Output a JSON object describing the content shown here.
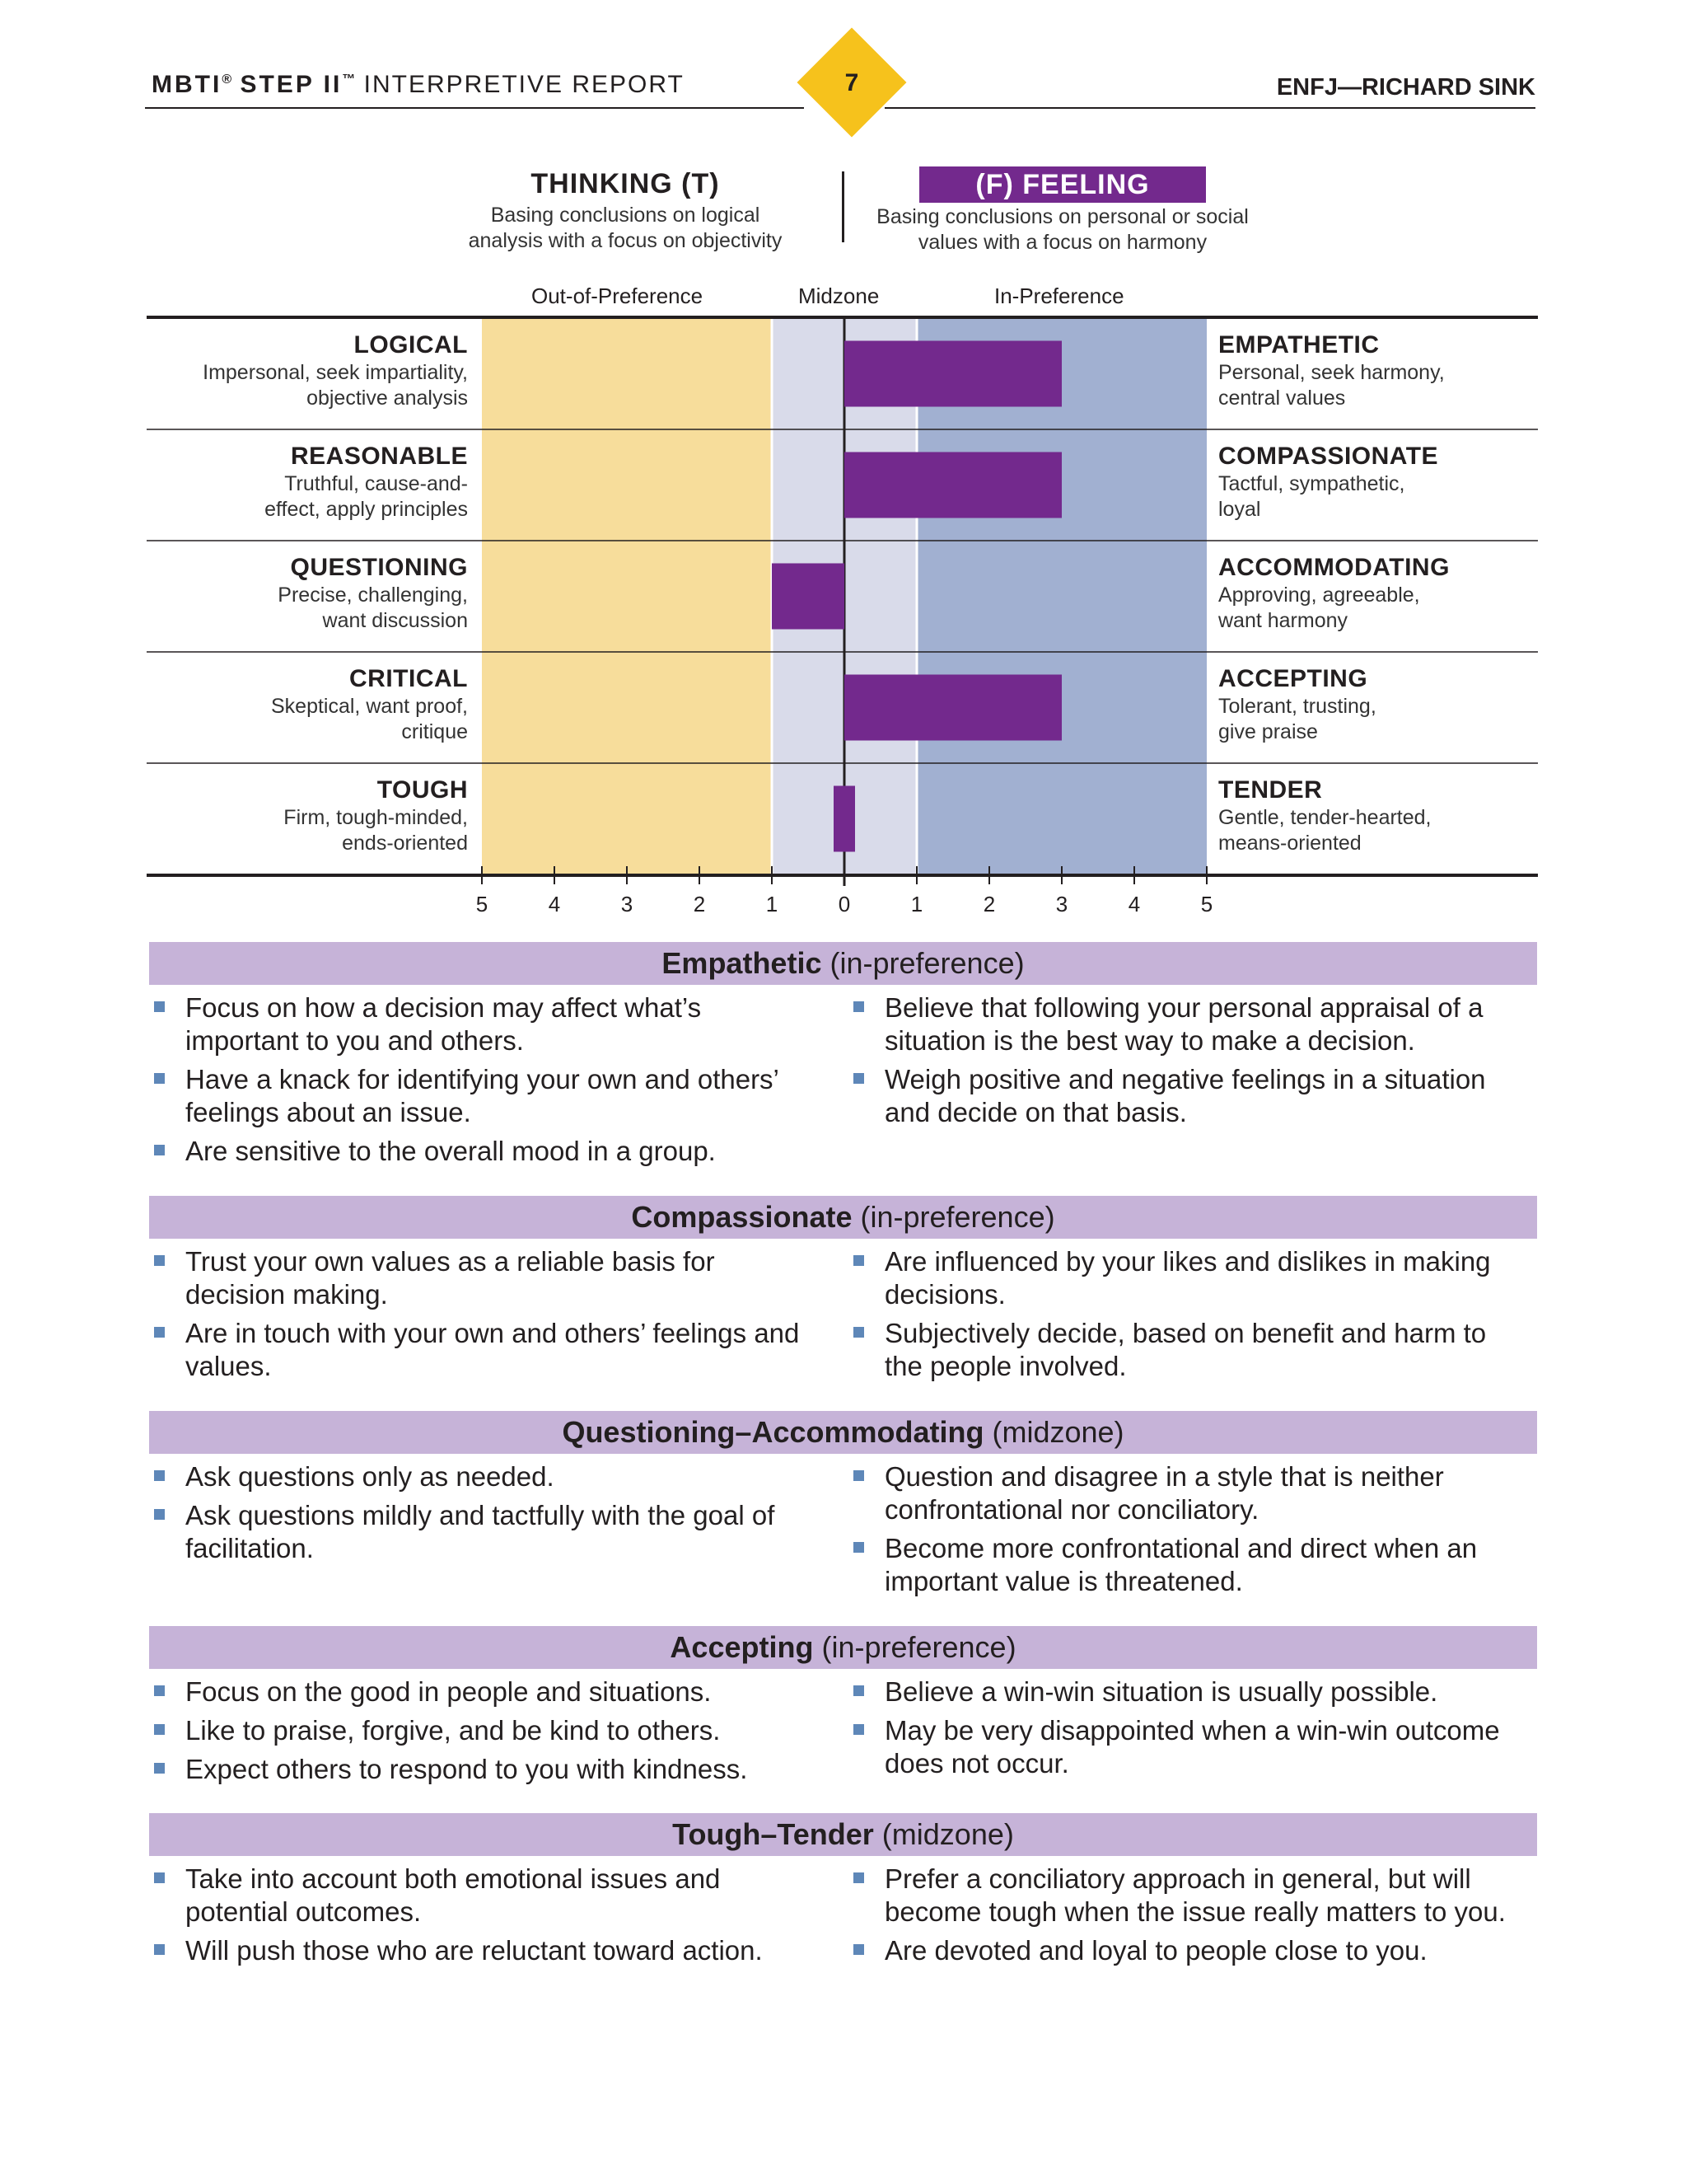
{
  "header": {
    "brand": "MBTI",
    "brand_mark": "®",
    "step": "STEP II",
    "step_mark": "™",
    "report": "INTERPRETIVE REPORT",
    "page_number": "7",
    "person": "ENFJ—RICHARD SINK",
    "accent": "#f6c21c"
  },
  "dichotomy": {
    "left_title": "THINKING (T)",
    "left_desc_1": "Basing conclusions on logical",
    "left_desc_2": "analysis with a focus on objectivity",
    "right_title": "(F) FEELING",
    "right_desc_1": "Basing conclusions on personal or social",
    "right_desc_2": "values with a focus on harmony",
    "preferred": "F",
    "preferred_color": "#73298d"
  },
  "zones": {
    "out": "Out-of-Preference",
    "mid": "Midzone",
    "in": "In-Preference",
    "colors": {
      "out": "#f7dd9b",
      "mid": "#d9dbea",
      "in": "#a1b0d1"
    }
  },
  "chart_data": {
    "type": "bar",
    "orientation": "horizontal-diverging",
    "scale_left": [
      "5",
      "4",
      "3",
      "2",
      "1",
      "0"
    ],
    "scale_right": [
      "1",
      "2",
      "3",
      "4",
      "5"
    ],
    "xlim": [
      -5,
      5
    ],
    "bar_color": "#73298d",
    "facets": [
      {
        "left_pole": "LOGICAL",
        "left_desc_1": "Impersonal, seek impartiality,",
        "left_desc_2": "objective analysis",
        "right_pole": "EMPATHETIC",
        "right_desc_1": "Personal, seek harmony,",
        "right_desc_2": "central values",
        "value": 3
      },
      {
        "left_pole": "REASONABLE",
        "left_desc_1": "Truthful, cause-and-",
        "left_desc_2": "effect, apply principles",
        "right_pole": "COMPASSIONATE",
        "right_desc_1": "Tactful, sympathetic,",
        "right_desc_2": "loyal",
        "value": 3
      },
      {
        "left_pole": "QUESTIONING",
        "left_desc_1": "Precise, challenging,",
        "left_desc_2": "want discussion",
        "right_pole": "ACCOMMODATING",
        "right_desc_1": "Approving, agreeable,",
        "right_desc_2": "want harmony",
        "value": -1
      },
      {
        "left_pole": "CRITICAL",
        "left_desc_1": "Skeptical, want proof,",
        "left_desc_2": "critique",
        "right_pole": "ACCEPTING",
        "right_desc_1": "Tolerant, trusting,",
        "right_desc_2": "give praise",
        "value": 3
      },
      {
        "left_pole": "TOUGH",
        "left_desc_1": "Firm, tough-minded,",
        "left_desc_2": "ends-oriented",
        "right_pole": "TENDER",
        "right_desc_1": "Gentle, tender-hearted,",
        "right_desc_2": "means-oriented",
        "value": 0
      }
    ]
  },
  "sections": [
    {
      "title": "Empathetic",
      "qualifier": "(in-preference)",
      "left": [
        "Focus on how a decision may affect what’s important to you and others.",
        "Have a knack for identifying your own and others’ feelings about an issue.",
        "Are sensitive to the overall mood in a group."
      ],
      "right": [
        "Believe that following your personal appraisal of a situation is the best way to make a decision.",
        "Weigh positive and negative feelings in a situation and decide on that basis."
      ]
    },
    {
      "title": "Compassionate",
      "qualifier": "(in-preference)",
      "left": [
        "Trust your own values as a reliable basis for decision making.",
        "Are in touch with your own and others’ feelings and values."
      ],
      "right": [
        "Are influenced by your likes and dislikes in making decisions.",
        "Subjectively decide, based on benefit and harm to the people involved."
      ]
    },
    {
      "title": "Questioning–Accommodating",
      "qualifier": "(midzone)",
      "left": [
        "Ask questions only as needed.",
        "Ask questions mildly and tactfully with the goal of facilitation."
      ],
      "right": [
        "Question and disagree in a style that is neither confrontational nor conciliatory.",
        "Become more confrontational and direct when an important value is threatened."
      ]
    },
    {
      "title": "Accepting",
      "qualifier": "(in-preference)",
      "left": [
        "Focus on the good in people and situations.",
        "Like to praise, forgive, and be kind to others.",
        "Expect others to respond to you with kindness."
      ],
      "right": [
        "Believe a win-win situation is usually possible.",
        "May be very disappointed when a win-win outcome does not occur."
      ]
    },
    {
      "title": "Tough–Tender",
      "qualifier": "(midzone)",
      "left": [
        "Take into account both emotional issues and potential outcomes.",
        "Will push those who are reluctant toward action."
      ],
      "right": [
        "Prefer a conciliatory approach in general, but will become tough when the issue really matters to you.",
        "Are devoted and loyal to people close to you."
      ]
    }
  ]
}
